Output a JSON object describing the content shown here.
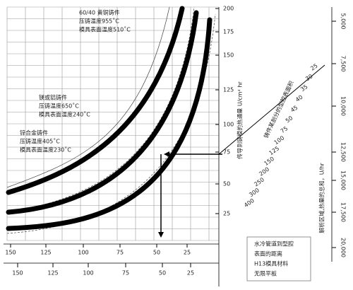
{
  "annotations": [
    {
      "lines": [
        "60/40 黄铜铸件",
        "压铸温度955˚C",
        "模具表面温度510˚C"
      ]
    },
    {
      "lines": [
        "镁或铝铸件",
        "压铸温度650˚C",
        "模具表面温度240˚C"
      ]
    },
    {
      "lines": [
        "锌合金铸件",
        "压铸温度405˚C",
        "模具表面温度230˚C"
      ]
    }
  ],
  "flux_axis": {
    "label": "传导到铸模的热通量 U/cm² hr",
    "ticks": [
      200,
      175,
      150,
      125,
      100,
      75,
      50,
      25
    ]
  },
  "distance_scale": {
    "ticks": [
      150,
      125,
      100,
      75,
      50,
      25
    ]
  },
  "distance_scale_2": {
    "ticks": [
      150,
      125,
      100,
      75,
      50,
      25
    ]
  },
  "area_scale": {
    "label": "铸件某剖分的型腔表面积",
    "ticks": [
      25,
      30,
      35,
      40,
      45,
      50,
      75,
      100,
      125,
      150,
      200,
      250,
      300,
      400
    ]
  },
  "total_scale": {
    "label": "解析区域,热量的总和，U/hr",
    "ticks": [
      "5,000",
      "7,500",
      "10,000",
      "12,500",
      "15,000",
      "17,500",
      "20,000"
    ]
  },
  "note": {
    "lines": [
      "水冷管道到型腔",
      "表面的距离",
      "H13模具材料",
      "无限平板"
    ]
  }
}
